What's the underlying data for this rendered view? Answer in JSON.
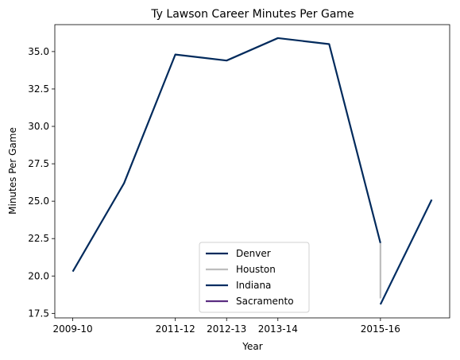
{
  "chart_data": {
    "type": "line",
    "title": "Ty Lawson Career Minutes Per Game",
    "xlabel": "Year",
    "ylabel": "Minutes Per Game",
    "x_tick_labels": [
      "2009-10",
      "2011-12",
      "2012-13",
      "2013-14",
      "2015-16"
    ],
    "y_tick_labels": [
      "17.5",
      "20.0",
      "22.5",
      "25.0",
      "27.5",
      "30.0",
      "32.5",
      "35.0"
    ],
    "y_ticks": [
      17.5,
      20.0,
      22.5,
      25.0,
      27.5,
      30.0,
      32.5,
      35.0
    ],
    "ylim": [
      17.2,
      36.8
    ],
    "grid": false,
    "legend_position": "lower-center",
    "series": [
      {
        "name": "Denver",
        "color": "#012a5c",
        "points": [
          {
            "x": "2009-10",
            "y": 20.3
          },
          {
            "x": "2010-11",
            "y": 26.2
          },
          {
            "x": "2011-12",
            "y": 34.8
          },
          {
            "x": "2012-13",
            "y": 34.4
          },
          {
            "x": "2013-14",
            "y": 35.9
          },
          {
            "x": "2014-15",
            "y": 35.5
          },
          {
            "x": "2015-16",
            "y": 22.2
          }
        ]
      },
      {
        "name": "Houston",
        "color": "#bdbdbd",
        "points": [
          {
            "x": "2015-16",
            "y": 22.2
          },
          {
            "x": "2015-16",
            "y": 18.5
          }
        ]
      },
      {
        "name": "Indiana",
        "color": "#002d62",
        "points": [
          {
            "x": "2015-16",
            "y": 18.1
          },
          {
            "x": "2016-17",
            "y": 25.1
          }
        ]
      },
      {
        "name": "Sacramento",
        "color": "#5a2d81",
        "points": []
      }
    ]
  }
}
